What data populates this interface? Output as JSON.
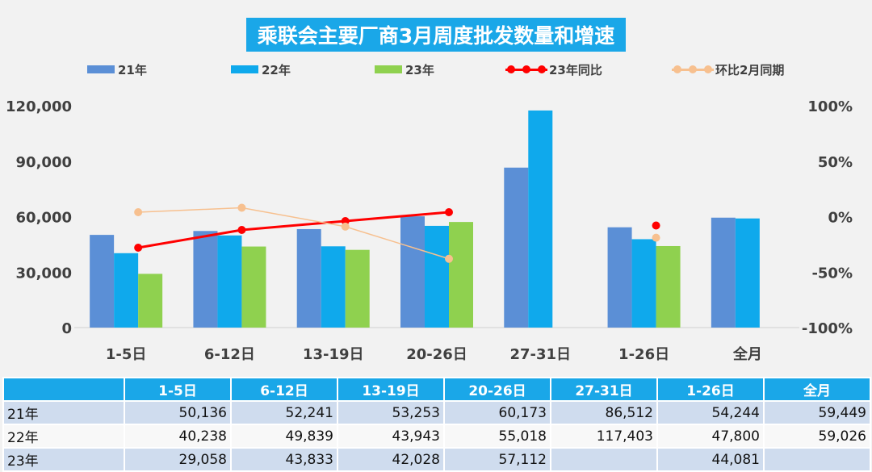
{
  "chart_data": {
    "type": "bar",
    "title": "乘联会主要厂商3月周度批发数量和增速",
    "categories": [
      "1-5日",
      "6-12日",
      "13-19日",
      "20-26日",
      "27-31日",
      "1-26日",
      "全月"
    ],
    "series": [
      {
        "name": "21年",
        "kind": "bar",
        "axis": "left",
        "color": "#5b8fd6",
        "values": [
          50136,
          52241,
          53253,
          60173,
          86512,
          54244,
          59449
        ]
      },
      {
        "name": "22年",
        "kind": "bar",
        "axis": "left",
        "color": "#0fa9ec",
        "values": [
          40238,
          49839,
          43943,
          55018,
          117403,
          47800,
          59026
        ]
      },
      {
        "name": "23年",
        "kind": "bar",
        "axis": "left",
        "color": "#8fd14f",
        "values": [
          29058,
          43833,
          42028,
          57112,
          null,
          44081,
          null
        ]
      },
      {
        "name": "23年同比",
        "kind": "line",
        "axis": "right",
        "color": "#ff0000",
        "values": [
          -28,
          -12,
          -4,
          4,
          null,
          -8,
          null
        ],
        "connect_until": 3
      },
      {
        "name": "环比2月同期",
        "kind": "line",
        "axis": "right",
        "color": "#f7c08f",
        "values": [
          4,
          8,
          -9,
          -38,
          null,
          -19,
          null
        ],
        "connect_until": 3
      }
    ],
    "y_left": {
      "min": 0,
      "max": 120000,
      "ticks": [
        "0",
        "30,000",
        "60,000",
        "90,000",
        "120,000"
      ]
    },
    "y_right": {
      "min": -100,
      "max": 100,
      "ticks": [
        "-100%",
        "-50%",
        "0%",
        "50%",
        "100%"
      ]
    },
    "legend_position": "top",
    "grid": false
  },
  "table": {
    "headers": [
      "",
      "1-5日",
      "6-12日",
      "13-19日",
      "20-26日",
      "27-31日",
      "1-26日",
      "全月"
    ],
    "rows": [
      {
        "label": "21年",
        "cells": [
          "50,136",
          "52,241",
          "53,253",
          "60,173",
          "86,512",
          "54,244",
          "59,449"
        ]
      },
      {
        "label": "22年",
        "cells": [
          "40,238",
          "49,839",
          "43,943",
          "55,018",
          "117,403",
          "47,800",
          "59,026"
        ]
      },
      {
        "label": "23年",
        "cells": [
          "29,058",
          "43,833",
          "42,028",
          "57,112",
          "",
          "44,081",
          ""
        ]
      }
    ]
  }
}
